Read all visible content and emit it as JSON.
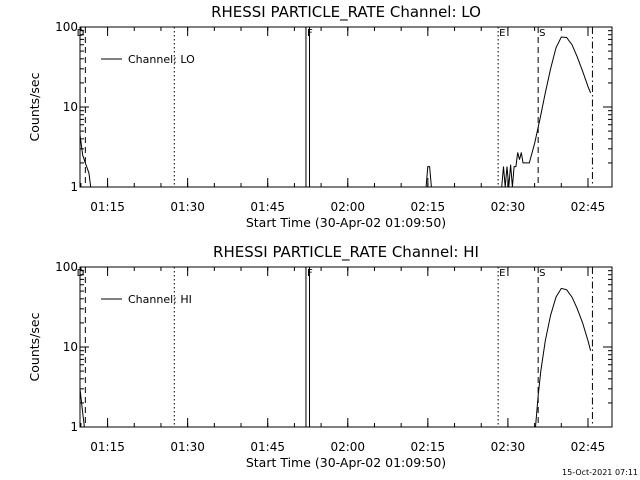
{
  "stamp": "15-Oct-2021 07:11",
  "chart_data": [
    {
      "type": "line",
      "title": "RHESSI PARTICLE_RATE Channel: LO",
      "xlabel": "Start Time (30-Apr-02 01:09:50)",
      "ylabel": "Counts/sec",
      "ylog": true,
      "ylim": [
        1,
        100
      ],
      "yticks": [
        1,
        10,
        100
      ],
      "ytick_labels": [
        "1",
        "10",
        "100"
      ],
      "xlim": [
        "01:09:50",
        "02:49:30"
      ],
      "xticks": [
        "01:15",
        "01:30",
        "01:45",
        "02:00",
        "02:15",
        "02:30",
        "02:45"
      ],
      "legend": "top-left",
      "series": [
        {
          "name": "Channel: LO",
          "points": [
            [
              "01:09:50",
              4.5
            ],
            [
              "01:10:20",
              2.5
            ],
            [
              "01:10:50",
              2.0
            ],
            [
              "01:11:30",
              1.5
            ],
            [
              "01:11:50",
              1.0
            ],
            [
              "02:14:40",
              1.0
            ],
            [
              "02:15:00",
              1.8
            ],
            [
              "02:15:20",
              1.8
            ],
            [
              "02:15:40",
              1.0
            ],
            [
              "02:28:50",
              1.0
            ],
            [
              "02:29:10",
              1.8
            ],
            [
              "02:29:30",
              1.0
            ],
            [
              "02:29:50",
              1.8
            ],
            [
              "02:30:10",
              1.0
            ],
            [
              "02:30:30",
              1.9
            ],
            [
              "02:30:50",
              1.0
            ],
            [
              "02:31:10",
              1.8
            ],
            [
              "02:31:30",
              1.8
            ],
            [
              "02:31:50",
              2.7
            ],
            [
              "02:32:10",
              2.2
            ],
            [
              "02:32:30",
              2.7
            ],
            [
              "02:32:50",
              2.0
            ],
            [
              "02:34:00",
              2.0
            ],
            [
              "02:35:00",
              3.5
            ],
            [
              "02:36:00",
              7.0
            ],
            [
              "02:37:00",
              15
            ],
            [
              "02:38:00",
              30
            ],
            [
              "02:39:00",
              55
            ],
            [
              "02:40:00",
              75
            ],
            [
              "02:41:00",
              74
            ],
            [
              "02:42:00",
              60
            ],
            [
              "02:43:00",
              42
            ],
            [
              "02:44:00",
              28
            ],
            [
              "02:45:00",
              18
            ],
            [
              "02:45:30",
              15
            ]
          ]
        }
      ],
      "markers": [
        {
          "label": "D",
          "time": "01:10:50",
          "style": "dashed",
          "label_left": true
        },
        {
          "label": "",
          "time": "01:27:30",
          "style": "dotted"
        },
        {
          "label": "F",
          "time": "01:52:10",
          "style": "solid"
        },
        {
          "label": "",
          "time": "01:52:50",
          "style": "solid"
        },
        {
          "label": "E",
          "time": "02:28:10",
          "style": "dotted"
        },
        {
          "label": "S",
          "time": "02:35:40",
          "style": "dashed"
        },
        {
          "label": "",
          "time": "02:45:50",
          "style": "dashdot"
        }
      ]
    },
    {
      "type": "line",
      "title": "RHESSI PARTICLE_RATE Channel: HI",
      "xlabel": "Start Time (30-Apr-02 01:09:50)",
      "ylabel": "Counts/sec",
      "ylog": true,
      "ylim": [
        1,
        100
      ],
      "yticks": [
        1,
        10,
        100
      ],
      "ytick_labels": [
        "1",
        "10",
        "100"
      ],
      "xlim": [
        "01:09:50",
        "02:49:30"
      ],
      "xticks": [
        "01:15",
        "01:30",
        "01:45",
        "02:00",
        "02:15",
        "02:30",
        "02:45"
      ],
      "legend": "top-left",
      "series": [
        {
          "name": "Channel: HI",
          "points": [
            [
              "01:09:50",
              3.0
            ],
            [
              "01:10:20",
              1.5
            ],
            [
              "01:10:40",
              1.0
            ],
            [
              "02:35:10",
              1.0
            ],
            [
              "02:35:40",
              2.5
            ],
            [
              "02:36:10",
              5.0
            ],
            [
              "02:37:00",
              12
            ],
            [
              "02:38:00",
              25
            ],
            [
              "02:39:00",
              42
            ],
            [
              "02:40:00",
              54
            ],
            [
              "02:41:00",
              52
            ],
            [
              "02:42:00",
              42
            ],
            [
              "02:43:00",
              30
            ],
            [
              "02:44:00",
              20
            ],
            [
              "02:45:00",
              12
            ],
            [
              "02:45:30",
              9
            ]
          ]
        }
      ],
      "markers": [
        {
          "label": "D",
          "time": "01:10:50",
          "style": "dashed",
          "label_left": true
        },
        {
          "label": "",
          "time": "01:27:30",
          "style": "dotted"
        },
        {
          "label": "F",
          "time": "01:52:10",
          "style": "solid"
        },
        {
          "label": "",
          "time": "01:52:50",
          "style": "solid"
        },
        {
          "label": "E",
          "time": "02:28:10",
          "style": "dotted"
        },
        {
          "label": "S",
          "time": "02:35:40",
          "style": "dashed"
        },
        {
          "label": "",
          "time": "02:45:50",
          "style": "dashdot"
        }
      ]
    }
  ]
}
